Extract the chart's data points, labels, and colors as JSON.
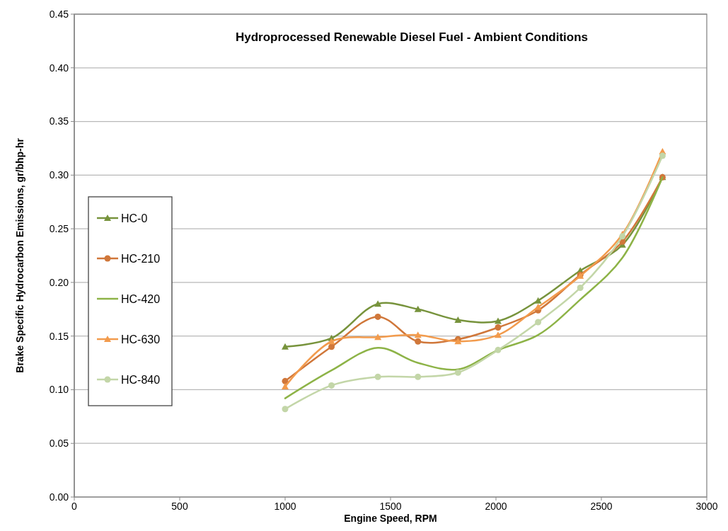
{
  "chart_data": {
    "type": "line",
    "title": "Hydroprocessed Renewable Diesel Fuel - Ambient Conditions",
    "xlabel": "Engine Speed, RPM",
    "ylabel": "Brake Specific Hydrocarbon Emissions, gr/bhp-hr",
    "x": [
      1000,
      1220,
      1440,
      1630,
      1820,
      2010,
      2200,
      2400,
      2600,
      2790
    ],
    "series": [
      {
        "name": "HC-0",
        "color": "#77933c",
        "marker": "triangle",
        "values": [
          0.14,
          0.148,
          0.18,
          0.175,
          0.165,
          0.164,
          0.183,
          0.211,
          0.235,
          0.298
        ]
      },
      {
        "name": "HC-210",
        "color": "#d0773a",
        "marker": "circle",
        "values": [
          0.108,
          0.14,
          0.168,
          0.145,
          0.147,
          0.158,
          0.174,
          0.207,
          0.238,
          0.298
        ]
      },
      {
        "name": "HC-420",
        "color": "#8db347",
        "marker": "none",
        "values": [
          0.092,
          0.118,
          0.139,
          0.125,
          0.119,
          0.137,
          0.151,
          0.184,
          0.223,
          0.298
        ]
      },
      {
        "name": "HC-630",
        "color": "#f29b4d",
        "marker": "triangle",
        "values": [
          0.103,
          0.145,
          0.149,
          0.151,
          0.145,
          0.151,
          0.177,
          0.206,
          0.245,
          0.322
        ]
      },
      {
        "name": "HC-840",
        "color": "#c3d6a8",
        "marker": "circle",
        "values": [
          0.082,
          0.104,
          0.112,
          0.112,
          0.116,
          0.137,
          0.163,
          0.195,
          0.243,
          0.318
        ]
      }
    ],
    "xlim": [
      0,
      3000
    ],
    "xticks": [
      0,
      500,
      1000,
      1500,
      2000,
      2500,
      3000
    ],
    "ylim": [
      0,
      0.45
    ],
    "yticks": [
      {
        "value": 0,
        "label": "0.00"
      },
      {
        "value": 0.05,
        "label": "0.05"
      },
      {
        "value": 0.1,
        "label": "0.10"
      },
      {
        "value": 0.15,
        "label": "0.15"
      },
      {
        "value": 0.2,
        "label": "0.20"
      },
      {
        "value": 0.25,
        "label": "0.25"
      },
      {
        "value": 0.3,
        "label": "0.30"
      },
      {
        "value": 0.35,
        "label": "0.35"
      },
      {
        "value": 0.4,
        "label": "0.40"
      },
      {
        "value": 0.45,
        "label": "0.45"
      }
    ],
    "grid": "y",
    "legend": "left"
  }
}
